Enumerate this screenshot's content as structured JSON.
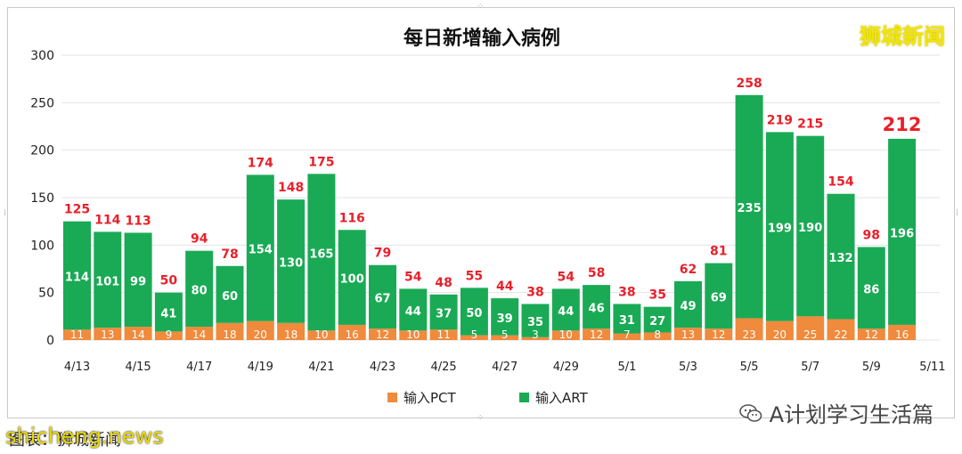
{
  "chart_data": {
    "type": "bar",
    "stacked": true,
    "title": "每日新增输入病例",
    "categories": [
      "4/13",
      "4/14",
      "4/15",
      "4/16",
      "4/17",
      "4/18",
      "4/19",
      "4/20",
      "4/21",
      "4/22",
      "4/23",
      "4/24",
      "4/25",
      "4/26",
      "4/27",
      "4/28",
      "4/29",
      "4/30",
      "5/1",
      "5/2",
      "5/3",
      "5/4",
      "5/5",
      "5/6",
      "5/7",
      "5/8",
      "5/9",
      "5/10"
    ],
    "x_tick_labels": [
      "4/13",
      "4/15",
      "4/17",
      "4/19",
      "4/21",
      "4/23",
      "4/25",
      "4/27",
      "4/29",
      "5/1",
      "5/3",
      "5/5",
      "5/7",
      "5/9",
      "5/11"
    ],
    "series": [
      {
        "name": "输入PCT",
        "color": "#f08a3c",
        "values": [
          11,
          13,
          14,
          9,
          14,
          18,
          20,
          18,
          10,
          16,
          12,
          10,
          11,
          5,
          5,
          3,
          10,
          12,
          7,
          8,
          13,
          12,
          23,
          20,
          25,
          22,
          12,
          16
        ]
      },
      {
        "name": "输入ART",
        "color": "#1aaa55",
        "values": [
          114,
          101,
          99,
          41,
          80,
          60,
          154,
          130,
          165,
          100,
          67,
          44,
          37,
          50,
          39,
          35,
          44,
          46,
          31,
          27,
          49,
          69,
          235,
          199,
          190,
          132,
          86,
          196
        ]
      }
    ],
    "totals": [
      125,
      114,
      113,
      50,
      94,
      78,
      174,
      148,
      175,
      116,
      79,
      54,
      48,
      55,
      44,
      38,
      54,
      58,
      38,
      35,
      62,
      81,
      258,
      219,
      215,
      154,
      98,
      212
    ],
    "total_label_color": "#e8202a",
    "ylim": [
      0,
      300
    ],
    "yticks": [
      0,
      50,
      100,
      150,
      200,
      250,
      300
    ],
    "grid": true,
    "legend_position": "bottom"
  },
  "watermarks": {
    "brand": "狮城新闻",
    "account": "A计划学习生活篇",
    "site": "shicheng.news",
    "caption": "图表：狮城新闻"
  }
}
